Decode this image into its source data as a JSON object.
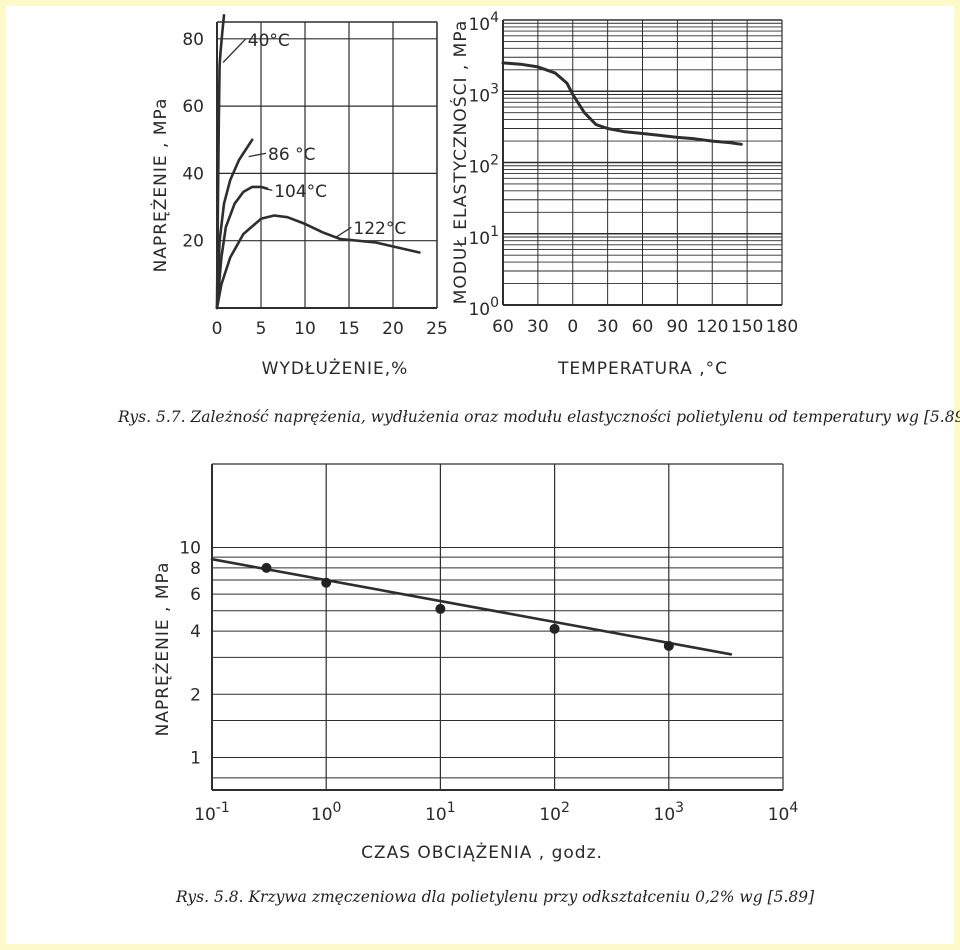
{
  "figure1": {
    "caption": "Rys. 5.7. Zależność naprężenia, wydłużenia oraz modułu elastyczności polietylenu od temperatury wg [5.89]"
  },
  "figure2": {
    "caption": "Rys. 5.8. Krzywa zmęczeniowa dla polietylenu przy odkształceniu 0,2% wg [5.89]"
  },
  "chart_data": [
    {
      "type": "line",
      "xlabel": "WYDŁUŻENIE,%",
      "ylabel": "NAPRĘŻENIE , MPa",
      "xlim": [
        0,
        25
      ],
      "ylim": [
        0,
        85
      ],
      "xticks": [
        "0",
        "5",
        "10",
        "15",
        "20",
        "25"
      ],
      "yticks": [
        "20",
        "40",
        "60",
        "80"
      ],
      "grid": true,
      "series": [
        {
          "name": "40°C",
          "x": [
            0,
            0.1,
            0.2,
            0.3,
            0.4,
            0.6,
            0.8
          ],
          "y": [
            0,
            30,
            55,
            72,
            76,
            82,
            87
          ]
        },
        {
          "name": "86°C",
          "x": [
            0,
            0.3,
            0.8,
            1.5,
            2.5,
            3.5,
            4.0
          ],
          "y": [
            0,
            20,
            31,
            38,
            44,
            48,
            50
          ]
        },
        {
          "name": "104°C",
          "x": [
            0,
            0.5,
            1.0,
            2.0,
            3.0,
            4.0,
            5.0,
            5.7
          ],
          "y": [
            0,
            15,
            24,
            31,
            34.5,
            36,
            36,
            35.5
          ]
        },
        {
          "name": "122°C",
          "x": [
            0,
            0.5,
            1.5,
            3.0,
            5.0,
            6.5,
            8.0,
            10.0,
            12.0,
            14.0,
            18.0,
            23.0
          ],
          "y": [
            0,
            7,
            15,
            22,
            26.5,
            27.5,
            27,
            25,
            22.5,
            20.5,
            19.5,
            16.5
          ]
        }
      ],
      "annotations": [
        "40°C",
        "86 °C",
        "104°C",
        "122°C"
      ]
    },
    {
      "type": "line",
      "xlabel": "TEMPERATURA ,°C",
      "ylabel": "MODUŁ ELASTYCZNOŚCI , MPa",
      "yscale": "log",
      "xlim": [
        -60,
        180
      ],
      "ylim": [
        1,
        10000
      ],
      "xticks": [
        "60",
        "30",
        "0",
        "30",
        "60",
        "90",
        "120",
        "150",
        "180"
      ],
      "yticks": [
        "10⁰",
        "10¹",
        "10²",
        "10³",
        "10⁴"
      ],
      "grid": true,
      "series": [
        {
          "x": [
            -60,
            -45,
            -30,
            -15,
            -5,
            0,
            10,
            20,
            30,
            45,
            60,
            75,
            90,
            105,
            120,
            135,
            145
          ],
          "y": [
            2500,
            2400,
            2200,
            1800,
            1300,
            900,
            500,
            340,
            300,
            270,
            255,
            240,
            225,
            215,
            200,
            190,
            180
          ]
        }
      ]
    },
    {
      "type": "line",
      "xlabel": "CZAS OBCIĄŻENIA , godz.",
      "ylabel": "NAPRĘŻENIE , MPa",
      "xscale": "log",
      "yscale": "log",
      "xlim": [
        0.1,
        10000
      ],
      "ylim": [
        0.7,
        25
      ],
      "xticks": [
        "10⁻¹",
        "10⁰",
        "10¹",
        "10²",
        "10³",
        "10⁴"
      ],
      "yticks": [
        "1",
        "2",
        "4",
        "6",
        "8",
        "10"
      ],
      "grid": true,
      "series": [
        {
          "x": [
            0.1,
            3500
          ],
          "y": [
            8.8,
            3.1
          ]
        }
      ],
      "points": {
        "x": [
          0.3,
          1.0,
          10,
          100,
          1000
        ],
        "y": [
          8.0,
          6.8,
          5.1,
          4.1,
          3.4
        ]
      }
    }
  ]
}
